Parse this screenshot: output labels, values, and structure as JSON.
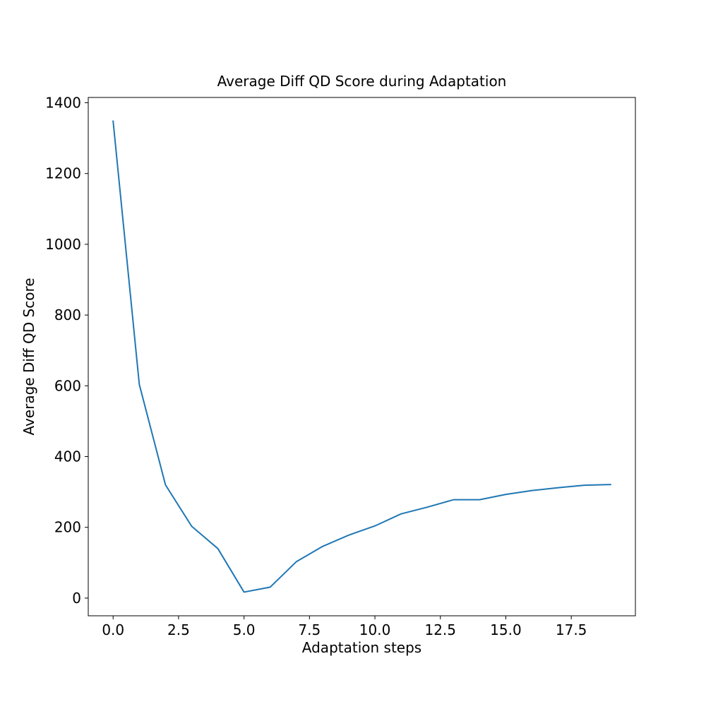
{
  "chart_data": {
    "type": "line",
    "title": "Average Diff QD Score during Adaptation",
    "xlabel": "Adaptation steps",
    "ylabel": "Average Diff QD Score",
    "xlim": [
      -0.95,
      19.95
    ],
    "ylim": [
      -50,
      1415
    ],
    "xticks": [
      0.0,
      2.5,
      5.0,
      7.5,
      10.0,
      12.5,
      15.0,
      17.5
    ],
    "xtick_labels": [
      "0.0",
      "2.5",
      "5.0",
      "7.5",
      "10.0",
      "12.5",
      "15.0",
      "17.5"
    ],
    "yticks": [
      0,
      200,
      400,
      600,
      800,
      1000,
      1200,
      1400
    ],
    "ytick_labels": [
      "0",
      "200",
      "400",
      "600",
      "800",
      "1000",
      "1200",
      "1400"
    ],
    "grid": false,
    "series": [
      {
        "name": "Average Diff QD Score",
        "color": "#1f77b4",
        "x": [
          0,
          1,
          2,
          3,
          4,
          5,
          6,
          7,
          8,
          9,
          10,
          11,
          12,
          13,
          14,
          15,
          16,
          17,
          18,
          19
        ],
        "values": [
          1348,
          604,
          320,
          203,
          140,
          17,
          31,
          103,
          146,
          178,
          204,
          238,
          257,
          278,
          278,
          293,
          304,
          312,
          319,
          321
        ]
      }
    ]
  }
}
